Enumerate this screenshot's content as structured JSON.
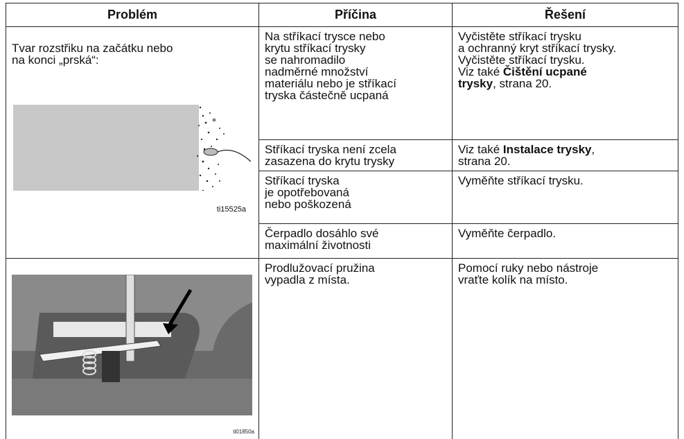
{
  "header": {
    "problem": "Problém",
    "cause": "Příčina",
    "solution": "Řešení"
  },
  "rows": [
    {
      "problem": "Tvar rozstřiku na začátku nebo\nna konci „prská“:",
      "image_caption": "ti15525a",
      "causes": [
        {
          "cause": "Na stříkací trysce nebo\nkrytu stříkací trysky\nse nahromadilo\nnadměrné množství\nmateriálu nebo je stříkací\ntryska částečně ucpaná",
          "solution": {
            "text": "Vyčistěte stříkací trysku\na ochranný kryt stříkací trysky.\nVyčistěte stříkací trysku.\nViz také ",
            "bold": "Čištění ucpané\ntrysky",
            "tail": ", strana 20."
          }
        },
        {
          "cause": "Stříkací tryska není zcela\nzasazena do krytu trysky",
          "solution": {
            "text": "Viz také ",
            "bold": "Instalace trysky",
            "tail": ",\nstrana 20."
          }
        },
        {
          "cause": "Stříkací tryska\nje opotřebovaná\nnebo poškozená",
          "solution": {
            "text": "Vyměňte stříkací trysku."
          }
        },
        {
          "cause": "Čerpadlo dosáhlo své\nmaximální životnosti",
          "solution": {
            "text": "Vyměňte čerpadlo."
          }
        }
      ]
    },
    {
      "image_caption": "ti01850a",
      "causes": [
        {
          "cause": "Prodlužovací pružina\nvypadla z místa.",
          "solution": {
            "text": "Pomocí ruky nebo nástroje\nvraťte kolík na místo."
          }
        }
      ]
    }
  ]
}
